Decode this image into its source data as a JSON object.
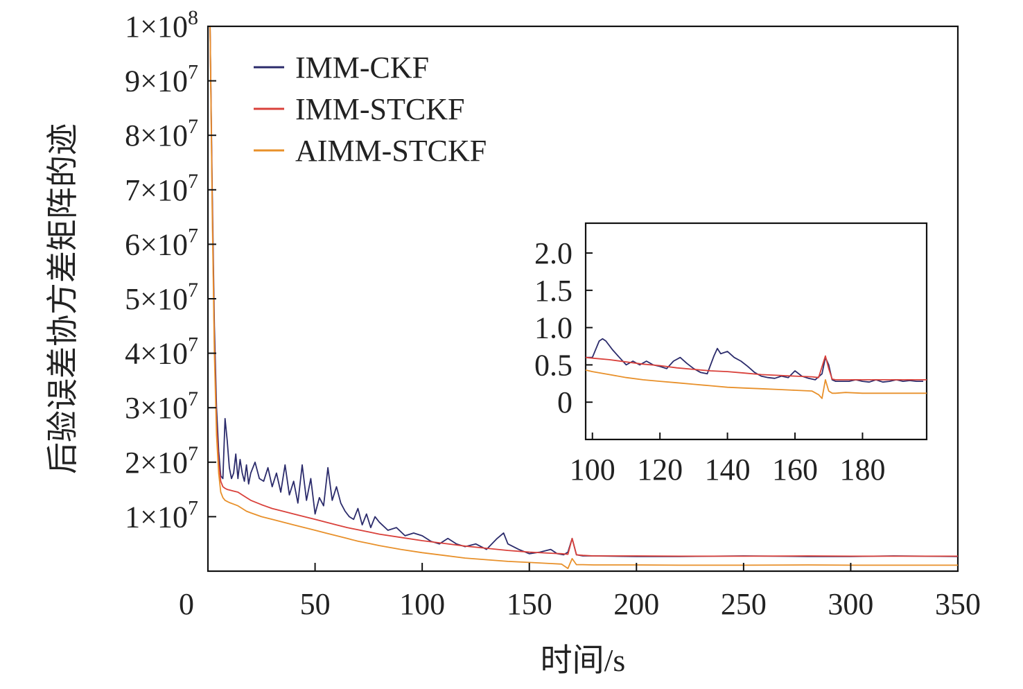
{
  "chart_data": [
    {
      "type": "line",
      "xlabel": "时间/s",
      "ylabel": "后验误差协方差矩阵的迹",
      "xlim": [
        0,
        350
      ],
      "ylim": [
        0,
        100000000
      ],
      "x_ticks": [
        "0",
        "50",
        "100",
        "150",
        "200",
        "250",
        "300",
        "350"
      ],
      "y_ticks": [
        {
          "mantissa": "1",
          "exponent": "7"
        },
        {
          "mantissa": "2",
          "exponent": "7"
        },
        {
          "mantissa": "3",
          "exponent": "7"
        },
        {
          "mantissa": "4",
          "exponent": "7"
        },
        {
          "mantissa": "5",
          "exponent": "7"
        },
        {
          "mantissa": "6",
          "exponent": "7"
        },
        {
          "mantissa": "7",
          "exponent": "7"
        },
        {
          "mantissa": "8",
          "exponent": "7"
        },
        {
          "mantissa": "9",
          "exponent": "7"
        },
        {
          "mantissa": "1",
          "exponent": "8"
        }
      ],
      "grid": false,
      "legend_position": "top-left",
      "series": [
        {
          "name": "IMM-CKF",
          "color": "#2b2b6b",
          "x": [
            1,
            2,
            3,
            4,
            5,
            6,
            7,
            8,
            9,
            10,
            11,
            12,
            13,
            14,
            15,
            16,
            17,
            18,
            19,
            20,
            22,
            24,
            26,
            28,
            30,
            32,
            34,
            36,
            38,
            40,
            42,
            44,
            46,
            48,
            50,
            52,
            54,
            56,
            58,
            60,
            62,
            64,
            66,
            68,
            70,
            72,
            74,
            76,
            78,
            80,
            84,
            88,
            92,
            96,
            100,
            104,
            108,
            112,
            116,
            120,
            125,
            130,
            135,
            138,
            140,
            145,
            150,
            155,
            160,
            163,
            166,
            168,
            170,
            172,
            175,
            180,
            200,
            220,
            250,
            280,
            300,
            320,
            350
          ],
          "y": [
            100000000,
            70000000,
            45000000,
            30000000,
            22000000,
            17500000,
            17000000,
            28000000,
            24000000,
            19000000,
            17000000,
            18000000,
            21500000,
            17000000,
            20500000,
            18000000,
            16500000,
            19500000,
            16000000,
            18000000,
            20000000,
            17000000,
            16500000,
            19000000,
            15500000,
            18000000,
            14500000,
            19500000,
            14000000,
            16500000,
            12500000,
            19500000,
            13000000,
            17000000,
            10500000,
            13500000,
            12000000,
            19000000,
            13000000,
            15500000,
            12500000,
            11000000,
            10000000,
            9500000,
            11500000,
            8500000,
            10500000,
            8000000,
            10000000,
            9000000,
            7500000,
            8000000,
            6500000,
            7000000,
            6500000,
            5500000,
            5000000,
            6000000,
            5000000,
            4500000,
            5000000,
            4000000,
            6000000,
            7000000,
            5000000,
            4000000,
            3200000,
            3500000,
            4000000,
            3200000,
            3000000,
            3500000,
            6000000,
            3000000,
            2800000,
            2800000,
            2700000,
            2700000,
            2800000,
            2700000,
            2700000,
            2800000,
            2700000
          ]
        },
        {
          "name": "IMM-STCKF",
          "color": "#d9403a",
          "x": [
            1,
            2,
            3,
            4,
            5,
            6,
            7,
            8,
            9,
            10,
            12,
            14,
            16,
            18,
            20,
            25,
            30,
            35,
            40,
            45,
            50,
            55,
            60,
            65,
            70,
            75,
            80,
            90,
            100,
            110,
            120,
            130,
            140,
            150,
            160,
            165,
            168,
            170,
            172,
            175,
            180,
            200,
            220,
            250,
            280,
            300,
            320,
            350
          ],
          "y": [
            100000000,
            68000000,
            42000000,
            27000000,
            20000000,
            16500000,
            15500000,
            15200000,
            15000000,
            14900000,
            14700000,
            14500000,
            14000000,
            13500000,
            13000000,
            12200000,
            11500000,
            11000000,
            10500000,
            10000000,
            9500000,
            9000000,
            8500000,
            8000000,
            7600000,
            7200000,
            6800000,
            6200000,
            5600000,
            5100000,
            4600000,
            4200000,
            3800000,
            3500000,
            3300000,
            3200000,
            3100000,
            6000000,
            3000000,
            2900000,
            2800000,
            2800000,
            2750000,
            2750000,
            2800000,
            2750000,
            2750000,
            2750000
          ]
        },
        {
          "name": "AIMM-STCKF",
          "color": "#e8902a",
          "x": [
            1,
            2,
            3,
            4,
            5,
            6,
            7,
            8,
            9,
            10,
            12,
            14,
            16,
            18,
            20,
            25,
            30,
            35,
            40,
            45,
            50,
            55,
            60,
            65,
            70,
            75,
            80,
            90,
            100,
            110,
            120,
            130,
            140,
            150,
            160,
            165,
            168,
            170,
            172,
            175,
            180,
            200,
            220,
            250,
            280,
            300,
            320,
            350
          ],
          "y": [
            100000000,
            66000000,
            40000000,
            25000000,
            18000000,
            14500000,
            13500000,
            13000000,
            12800000,
            12600000,
            12300000,
            12000000,
            11500000,
            11000000,
            10700000,
            10000000,
            9500000,
            9000000,
            8500000,
            8000000,
            7500000,
            7000000,
            6500000,
            6000000,
            5500000,
            5100000,
            4700000,
            4000000,
            3400000,
            2900000,
            2400000,
            2100000,
            1800000,
            1600000,
            1400000,
            1300000,
            500000,
            2300000,
            1200000,
            1200000,
            1150000,
            1150000,
            1100000,
            1100000,
            1150000,
            1100000,
            1100000,
            1100000
          ]
        }
      ]
    },
    {
      "type": "line",
      "title": "",
      "xlim": [
        98,
        199
      ],
      "ylim": [
        -0.5,
        2.4
      ],
      "x_ticks": [
        "100",
        "120",
        "140",
        "160",
        "180"
      ],
      "y_ticks": [
        "0",
        "0.5",
        "1.0",
        "1.5",
        "2.0"
      ],
      "grid": false,
      "series": [
        {
          "color": "#2b2b6b",
          "x": [
            98,
            100,
            102,
            103,
            104,
            106,
            108,
            110,
            112,
            114,
            116,
            118,
            120,
            122,
            124,
            126,
            128,
            130,
            132,
            134,
            136,
            137,
            138,
            140,
            142,
            144,
            146,
            148,
            150,
            152,
            154,
            156,
            158,
            160,
            162,
            164,
            166,
            168,
            169,
            170,
            171,
            172,
            174,
            176,
            178,
            180,
            182,
            184,
            186,
            188,
            190,
            192,
            194,
            196,
            198
          ],
          "y": [
            0.6,
            0.6,
            0.82,
            0.85,
            0.82,
            0.7,
            0.6,
            0.5,
            0.55,
            0.5,
            0.55,
            0.5,
            0.48,
            0.45,
            0.55,
            0.6,
            0.52,
            0.45,
            0.4,
            0.38,
            0.62,
            0.72,
            0.65,
            0.68,
            0.6,
            0.55,
            0.48,
            0.4,
            0.35,
            0.33,
            0.32,
            0.35,
            0.33,
            0.42,
            0.35,
            0.32,
            0.3,
            0.38,
            0.6,
            0.5,
            0.3,
            0.28,
            0.28,
            0.28,
            0.3,
            0.28,
            0.27,
            0.3,
            0.27,
            0.28,
            0.3,
            0.28,
            0.29,
            0.28,
            0.28
          ]
        },
        {
          "color": "#d9403a",
          "x": [
            98,
            100,
            105,
            110,
            115,
            120,
            125,
            130,
            135,
            140,
            145,
            150,
            155,
            160,
            165,
            167,
            169,
            170,
            171,
            172,
            175,
            180,
            185,
            190,
            195,
            199
          ],
          "y": [
            0.6,
            0.59,
            0.57,
            0.54,
            0.51,
            0.49,
            0.46,
            0.44,
            0.42,
            0.41,
            0.39,
            0.37,
            0.36,
            0.35,
            0.34,
            0.33,
            0.62,
            0.45,
            0.31,
            0.3,
            0.3,
            0.3,
            0.3,
            0.3,
            0.3,
            0.3
          ]
        },
        {
          "color": "#e8902a",
          "x": [
            98,
            100,
            105,
            110,
            115,
            120,
            125,
            130,
            135,
            140,
            145,
            150,
            155,
            160,
            165,
            167,
            168,
            169,
            170,
            171,
            172,
            175,
            180,
            185,
            190,
            195,
            199
          ],
          "y": [
            0.43,
            0.41,
            0.37,
            0.33,
            0.3,
            0.28,
            0.26,
            0.24,
            0.22,
            0.2,
            0.19,
            0.18,
            0.17,
            0.16,
            0.15,
            0.1,
            0.05,
            0.3,
            0.15,
            0.12,
            0.12,
            0.13,
            0.12,
            0.12,
            0.12,
            0.12,
            0.12
          ]
        }
      ]
    }
  ]
}
